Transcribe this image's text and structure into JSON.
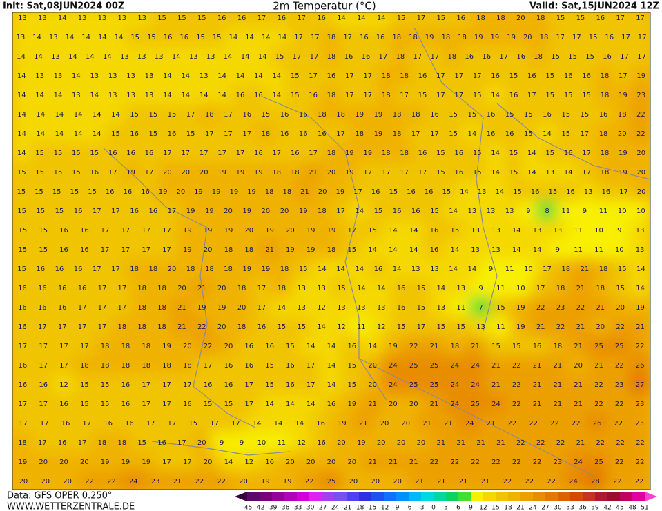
{
  "header": {
    "init": "Init: Sat,08JUN2024 00Z",
    "title": "2m Temperatur (°C)",
    "valid": "Valid: Sat,15JUN2024 12Z"
  },
  "footer": {
    "source": "Data: GFS OPER 0.250°",
    "website": "WWW.WETTERZENTRALE.DE"
  },
  "map": {
    "rows": [
      [
        13,
        13,
        14,
        13,
        13,
        13,
        13,
        15,
        15,
        15,
        16,
        16,
        17,
        16,
        17,
        16,
        14,
        14,
        14,
        15,
        17,
        15,
        16,
        18,
        18,
        20,
        18,
        15,
        15,
        16,
        17,
        17
      ],
      [
        13,
        14,
        13,
        14,
        14,
        14,
        14,
        15,
        15,
        16,
        16,
        15,
        15,
        14,
        14,
        14,
        14,
        17,
        17,
        18,
        17,
        16,
        16,
        18,
        18,
        19,
        18,
        18,
        19,
        19,
        19,
        20,
        18,
        17,
        17,
        15,
        16,
        17,
        17
      ],
      [
        14,
        14,
        13,
        14,
        14,
        14,
        13,
        13,
        13,
        14,
        13,
        13,
        14,
        14,
        14,
        15,
        17,
        17,
        18,
        16,
        16,
        17,
        18,
        17,
        17,
        18,
        16,
        16,
        17,
        16,
        18,
        15,
        15,
        15,
        16,
        17,
        17
      ],
      [
        14,
        13,
        13,
        14,
        13,
        13,
        13,
        13,
        14,
        14,
        13,
        14,
        14,
        14,
        14,
        15,
        17,
        16,
        17,
        17,
        18,
        18,
        16,
        17,
        17,
        17,
        16,
        15,
        16,
        15,
        16,
        16,
        18,
        17,
        19
      ],
      [
        14,
        14,
        14,
        13,
        14,
        13,
        13,
        13,
        14,
        14,
        14,
        14,
        16,
        16,
        14,
        15,
        16,
        18,
        17,
        17,
        18,
        17,
        15,
        17,
        17,
        15,
        14,
        16,
        17,
        15,
        15,
        15,
        18,
        19,
        23
      ],
      [
        14,
        14,
        14,
        14,
        14,
        14,
        15,
        15,
        15,
        17,
        18,
        17,
        16,
        15,
        16,
        16,
        18,
        18,
        19,
        19,
        18,
        18,
        16,
        15,
        15,
        16,
        15,
        15,
        16,
        15,
        15,
        16,
        18,
        22
      ],
      [
        14,
        14,
        14,
        14,
        14,
        15,
        16,
        15,
        16,
        15,
        17,
        17,
        17,
        18,
        16,
        16,
        16,
        17,
        18,
        19,
        18,
        17,
        17,
        15,
        14,
        16,
        16,
        15,
        14,
        15,
        17,
        18,
        20,
        22
      ],
      [
        14,
        15,
        15,
        15,
        15,
        16,
        16,
        16,
        17,
        17,
        17,
        17,
        17,
        16,
        17,
        16,
        17,
        18,
        19,
        19,
        18,
        18,
        16,
        15,
        16,
        15,
        14,
        15,
        14,
        15,
        16,
        17,
        18,
        19,
        20
      ],
      [
        15,
        15,
        15,
        15,
        16,
        17,
        19,
        17,
        20,
        20,
        20,
        19,
        19,
        19,
        18,
        18,
        21,
        20,
        19,
        17,
        17,
        17,
        17,
        15,
        16,
        15,
        14,
        15,
        14,
        13,
        14,
        17,
        18,
        19,
        20
      ],
      [
        15,
        15,
        15,
        15,
        15,
        16,
        16,
        16,
        19,
        20,
        19,
        19,
        19,
        19,
        18,
        18,
        21,
        20,
        19,
        17,
        16,
        15,
        16,
        16,
        15,
        14,
        13,
        14,
        15,
        16,
        15,
        16,
        13,
        16,
        17,
        20
      ],
      [
        15,
        15,
        15,
        16,
        17,
        17,
        16,
        16,
        17,
        19,
        19,
        20,
        19,
        20,
        20,
        19,
        18,
        17,
        14,
        15,
        16,
        16,
        15,
        14,
        13,
        13,
        13,
        9,
        8,
        11,
        9,
        11,
        10,
        10
      ],
      [
        15,
        15,
        16,
        16,
        17,
        17,
        17,
        17,
        19,
        19,
        19,
        20,
        19,
        20,
        19,
        19,
        17,
        15,
        14,
        14,
        16,
        15,
        13,
        13,
        14,
        13,
        13,
        11,
        10,
        9,
        13
      ],
      [
        15,
        15,
        16,
        16,
        17,
        17,
        17,
        17,
        19,
        20,
        18,
        18,
        21,
        19,
        19,
        18,
        15,
        14,
        14,
        14,
        16,
        14,
        13,
        13,
        14,
        14,
        9,
        11,
        11,
        10,
        13
      ],
      [
        15,
        16,
        16,
        16,
        17,
        17,
        18,
        18,
        20,
        18,
        18,
        18,
        19,
        19,
        18,
        15,
        14,
        14,
        14,
        16,
        14,
        13,
        13,
        14,
        14,
        9,
        11,
        10,
        17,
        18,
        21,
        18,
        15,
        14
      ],
      [
        16,
        16,
        16,
        16,
        17,
        17,
        18,
        18,
        20,
        21,
        20,
        18,
        17,
        18,
        13,
        13,
        15,
        14,
        14,
        16,
        15,
        14,
        13,
        9,
        11,
        10,
        17,
        18,
        21,
        18,
        15,
        14
      ],
      [
        16,
        16,
        16,
        17,
        17,
        17,
        18,
        18,
        21,
        19,
        19,
        20,
        17,
        14,
        13,
        12,
        13,
        13,
        13,
        16,
        15,
        13,
        11,
        7,
        15,
        19,
        22,
        23,
        22,
        21,
        20,
        19
      ],
      [
        16,
        17,
        17,
        17,
        17,
        18,
        18,
        18,
        21,
        22,
        20,
        18,
        16,
        15,
        15,
        14,
        12,
        11,
        12,
        15,
        17,
        15,
        15,
        13,
        11,
        19,
        21,
        22,
        21,
        20,
        22,
        21
      ],
      [
        17,
        17,
        17,
        17,
        18,
        18,
        18,
        19,
        20,
        22,
        20,
        16,
        16,
        15,
        14,
        14,
        16,
        14,
        19,
        22,
        21,
        18,
        21,
        15,
        15,
        16,
        18,
        21,
        25,
        25,
        22
      ],
      [
        16,
        17,
        17,
        18,
        18,
        18,
        18,
        18,
        18,
        17,
        16,
        16,
        15,
        16,
        17,
        14,
        15,
        20,
        24,
        25,
        25,
        24,
        24,
        21,
        22,
        21,
        21,
        20,
        21,
        22,
        26
      ],
      [
        16,
        16,
        12,
        15,
        15,
        16,
        17,
        17,
        17,
        16,
        16,
        17,
        15,
        16,
        17,
        14,
        15,
        20,
        24,
        25,
        25,
        24,
        24,
        21,
        22,
        21,
        21,
        21,
        22,
        23,
        27
      ],
      [
        17,
        17,
        16,
        15,
        15,
        16,
        17,
        17,
        16,
        15,
        15,
        17,
        14,
        14,
        14,
        16,
        19,
        21,
        20,
        20,
        21,
        24,
        25,
        24,
        22,
        21,
        21,
        21,
        22,
        22,
        23
      ],
      [
        17,
        17,
        16,
        17,
        16,
        16,
        17,
        17,
        15,
        17,
        17,
        14,
        14,
        14,
        16,
        19,
        21,
        20,
        20,
        21,
        21,
        24,
        21,
        22,
        22,
        22,
        22,
        26,
        22,
        23
      ],
      [
        18,
        17,
        16,
        17,
        18,
        18,
        15,
        16,
        17,
        20,
        9,
        9,
        10,
        11,
        12,
        16,
        20,
        19,
        20,
        20,
        20,
        21,
        21,
        21,
        21,
        22,
        22,
        22,
        21,
        22,
        22,
        22
      ],
      [
        19,
        20,
        20,
        20,
        19,
        19,
        19,
        17,
        17,
        20,
        14,
        12,
        16,
        20,
        20,
        20,
        20,
        21,
        21,
        21,
        22,
        22,
        22,
        22,
        22,
        22,
        23,
        24,
        25,
        22,
        22
      ],
      [
        20,
        20,
        20,
        22,
        22,
        24,
        23,
        21,
        22,
        22,
        20,
        19,
        19,
        22,
        25,
        20,
        20,
        20,
        21,
        21,
        21,
        21,
        22,
        22,
        22,
        24,
        28,
        22,
        22
      ]
    ]
  },
  "colorbar": {
    "labels": [
      -45,
      -42,
      -39,
      -36,
      -33,
      -30,
      -27,
      -24,
      -21,
      -18,
      -15,
      -12,
      -9,
      -6,
      -3,
      0,
      3,
      6,
      9,
      12,
      15,
      18,
      21,
      24,
      27,
      30,
      33,
      36,
      39,
      42,
      45,
      48,
      51
    ],
    "colors": [
      "#3a003a",
      "#5a0a6a",
      "#78007a",
      "#96009a",
      "#b400b8",
      "#d000d8",
      "#e020f0",
      "#a040f0",
      "#7850f0",
      "#5040f0",
      "#3030e0",
      "#2050f0",
      "#1070ff",
      "#0090ff",
      "#00b8ff",
      "#00d8e0",
      "#00d8a0",
      "#10d060",
      "#40e030",
      "#f8f000",
      "#f5d800",
      "#f0c400",
      "#f0b200",
      "#eca000",
      "#e88c00",
      "#e47800",
      "#de6000",
      "#d84800",
      "#c83020",
      "#b01830",
      "#a00c30",
      "#c00060",
      "#e000a0",
      "#ff40d0"
    ]
  }
}
